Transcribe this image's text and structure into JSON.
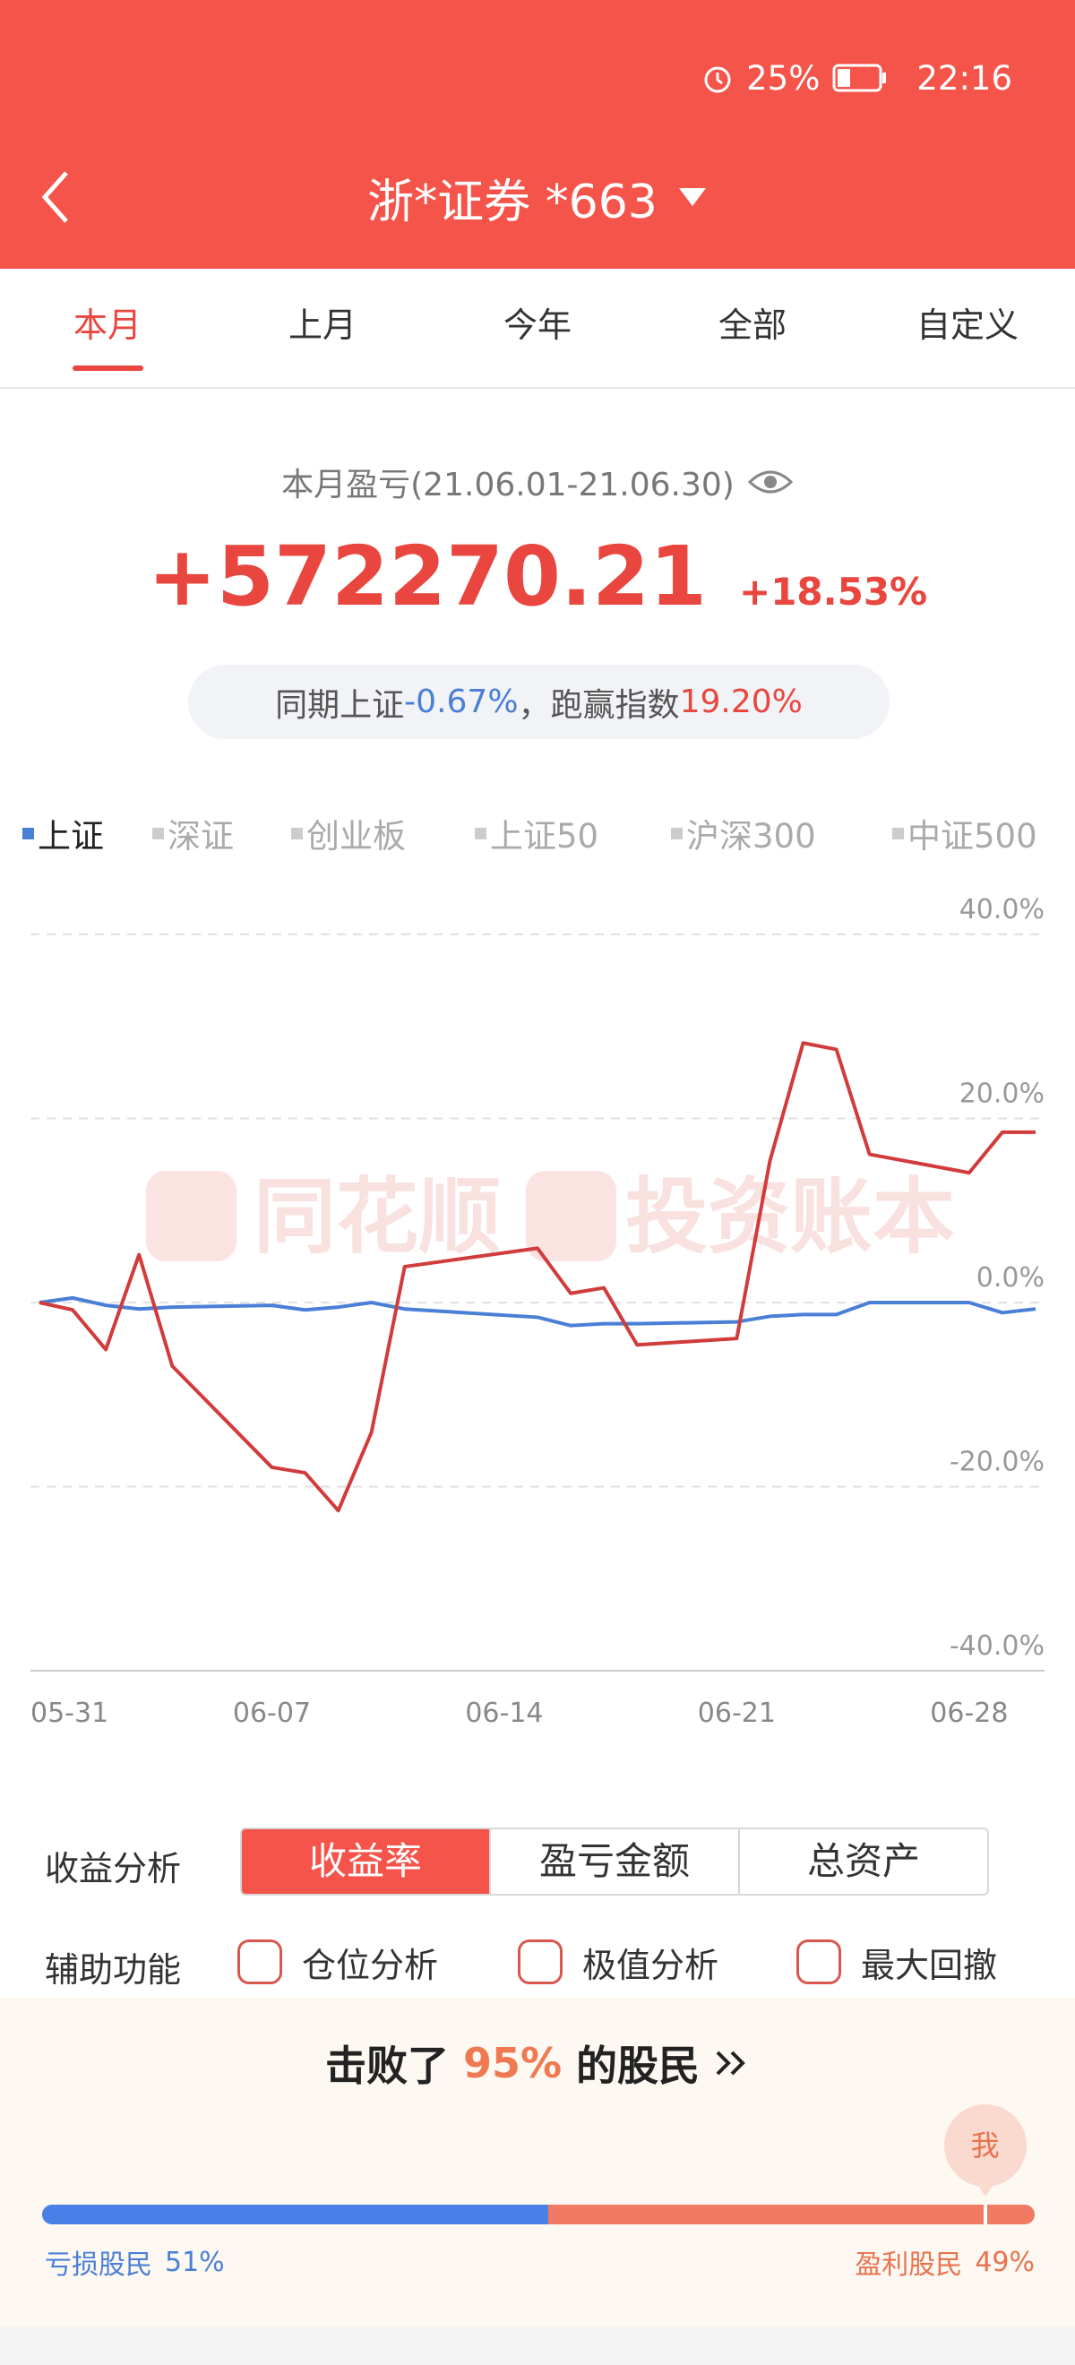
{
  "status_bar": {
    "battery": "25%",
    "time": "22:16"
  },
  "header": {
    "title": "浙*证券 *663"
  },
  "tabs": {
    "items": [
      "本月",
      "上月",
      "今年",
      "全部",
      "自定义"
    ],
    "active": 0
  },
  "summary": {
    "period_label": "本月盈亏(21.06.01-21.06.30)",
    "profit": "+572270.21",
    "return": "+18.53%"
  },
  "comparison": {
    "index_label": "同期上证",
    "index_return": "-0.67%",
    "separator": "，",
    "beat_label": "跑赢指数",
    "beat_value": "19.20%"
  },
  "chart_data": {
    "type": "line",
    "x": [
      "05-31",
      "06-01",
      "06-02",
      "06-03",
      "06-04",
      "06-07",
      "06-08",
      "06-09",
      "06-10",
      "06-11",
      "06-15",
      "06-16",
      "06-17",
      "06-18",
      "06-21",
      "06-22",
      "06-23",
      "06-24",
      "06-25",
      "06-28",
      "06-29",
      "06-30"
    ],
    "xlim": [
      "05-31",
      "06-30"
    ],
    "xticks": [
      "05-31",
      "06-07",
      "06-14",
      "06-21",
      "06-28"
    ],
    "ylim": [
      -40,
      40
    ],
    "yticks": [
      {
        "value": 40,
        "label": "40.0%"
      },
      {
        "value": 20,
        "label": "20.0%"
      },
      {
        "value": 0,
        "label": "0.0%"
      },
      {
        "value": -20,
        "label": "-20.0%"
      },
      {
        "value": -40,
        "label": "-40.0%"
      }
    ],
    "grid": true,
    "series": [
      {
        "color": "#d23b3b",
        "values": [
          0,
          -0.8,
          -5.1,
          5.2,
          -6.9,
          -17.9,
          -18.5,
          -22.6,
          -14.1,
          3.9,
          5.9,
          1.0,
          1.6,
          -4.6,
          -3.9,
          15.4,
          28.2,
          27.5,
          16.1,
          14.1,
          18.5,
          18.5
        ]
      },
      {
        "name": "上证",
        "color": "#4a7fd6",
        "values": [
          0,
          0.5,
          -0.3,
          -0.7,
          -0.5,
          -0.3,
          -0.8,
          -0.5,
          0,
          -0.7,
          -1.6,
          -2.5,
          -2.3,
          -2.3,
          -2.1,
          -1.5,
          -1.3,
          -1.3,
          0,
          0,
          -1.1,
          -0.7
        ]
      }
    ],
    "other_indices": [
      "深证",
      "创业板",
      "上证50",
      "沪深300",
      "中证500"
    ],
    "watermark": [
      "同花顺",
      "投资账本"
    ]
  },
  "analysis": {
    "label": "收益分析",
    "options": [
      "收益率",
      "盈亏金额",
      "总资产"
    ],
    "active": 0
  },
  "tools": {
    "label": "辅助功能",
    "options": [
      "仓位分析",
      "极值分析",
      "最大回撤"
    ]
  },
  "ranking": {
    "prefix": "击败了",
    "beat": {
      "value": 95,
      "label": "95%"
    },
    "suffix": "的股民",
    "marker": "我",
    "loss": {
      "label": "亏损股民",
      "value": 51,
      "value_label": "51%"
    },
    "profit": {
      "label": "盈利股民",
      "value": 49,
      "value_label": "49%"
    }
  }
}
